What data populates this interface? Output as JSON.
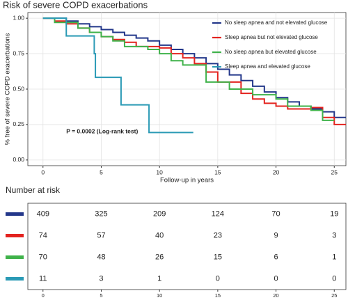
{
  "chart_data": [
    {
      "type": "step",
      "title": "Risk of severe COPD exacerbations",
      "x_label": "Follow-up in years",
      "y_label": "% free of severe COPD exacerbations",
      "annotation": "P = 0.0002 (Log-rank test)",
      "xlim": [
        -1.3,
        26
      ],
      "ylim": [
        -0.04,
        1.04
      ],
      "xticks": [
        0,
        5,
        10,
        15,
        20,
        25
      ],
      "yticks": [
        {
          "value": 0,
          "label": "0.00"
        },
        {
          "value": 0.25,
          "label": "0.25"
        },
        {
          "value": 0.5,
          "label": "0.50"
        },
        {
          "value": 0.75,
          "label": "0.75"
        },
        {
          "value": 1,
          "label": "1.00"
        }
      ],
      "grid": true,
      "legend": "top-right",
      "series": [
        {
          "name": "No sleep  apnea and not elevated glucose",
          "color": "#23378a",
          "x": [
            0,
            2,
            3,
            4,
            5,
            6,
            7,
            8,
            9,
            10,
            11,
            12,
            13,
            14,
            15,
            16,
            17,
            18,
            19,
            20,
            21,
            22,
            23,
            24,
            25,
            26
          ],
          "values": [
            1,
            0.98,
            0.96,
            0.94,
            0.92,
            0.9,
            0.88,
            0.86,
            0.84,
            0.81,
            0.78,
            0.75,
            0.72,
            0.68,
            0.64,
            0.6,
            0.56,
            0.52,
            0.48,
            0.44,
            0.41,
            0.38,
            0.36,
            0.34,
            0.3,
            0.3
          ]
        },
        {
          "name": "Sleep apnea but not elevated glucose",
          "color": "#e3231f",
          "x": [
            0,
            1,
            2,
            3,
            4,
            5,
            6,
            7,
            8,
            10,
            11,
            12,
            13,
            14,
            15,
            17,
            18,
            19,
            20,
            21,
            23,
            24,
            25,
            26
          ],
          "values": [
            1,
            0.98,
            0.96,
            0.93,
            0.9,
            0.87,
            0.85,
            0.83,
            0.8,
            0.79,
            0.75,
            0.72,
            0.68,
            0.62,
            0.55,
            0.47,
            0.43,
            0.4,
            0.38,
            0.36,
            0.37,
            0.3,
            0.25,
            0.25
          ]
        },
        {
          "name": "No sleep apnea but elevated glucose",
          "color": "#3fb24a",
          "x": [
            0,
            1,
            3,
            4,
            5,
            6,
            7,
            9,
            10,
            11,
            12,
            14,
            16,
            18,
            20,
            21,
            23,
            24,
            25
          ],
          "values": [
            1,
            0.97,
            0.93,
            0.9,
            0.87,
            0.84,
            0.8,
            0.78,
            0.75,
            0.7,
            0.67,
            0.55,
            0.5,
            0.46,
            0.43,
            0.38,
            0.35,
            0.28,
            0.28
          ]
        },
        {
          "name": "Sleep apnea and elevated glucose",
          "color": "#2a9ab5",
          "x": [
            0,
            2,
            4.4,
            4.5,
            6.7,
            9.1,
            12.9
          ],
          "values": [
            1,
            0.875,
            0.75,
            0.583,
            0.389,
            0.194,
            0.194
          ]
        }
      ]
    },
    {
      "type": "table",
      "title": "Number at risk",
      "xlim": [
        -1.3,
        26
      ],
      "xticks": [
        0,
        5,
        10,
        15,
        20,
        25
      ],
      "rows": [
        {
          "color": "#23378a",
          "values": [
            409,
            325,
            209,
            124,
            70,
            19
          ]
        },
        {
          "color": "#e3231f",
          "values": [
            74,
            57,
            40,
            23,
            9,
            3
          ]
        },
        {
          "color": "#3fb24a",
          "values": [
            70,
            48,
            26,
            15,
            6,
            1
          ]
        },
        {
          "color": "#2a9ab5",
          "values": [
            11,
            3,
            1,
            0,
            0,
            0
          ]
        }
      ]
    }
  ]
}
